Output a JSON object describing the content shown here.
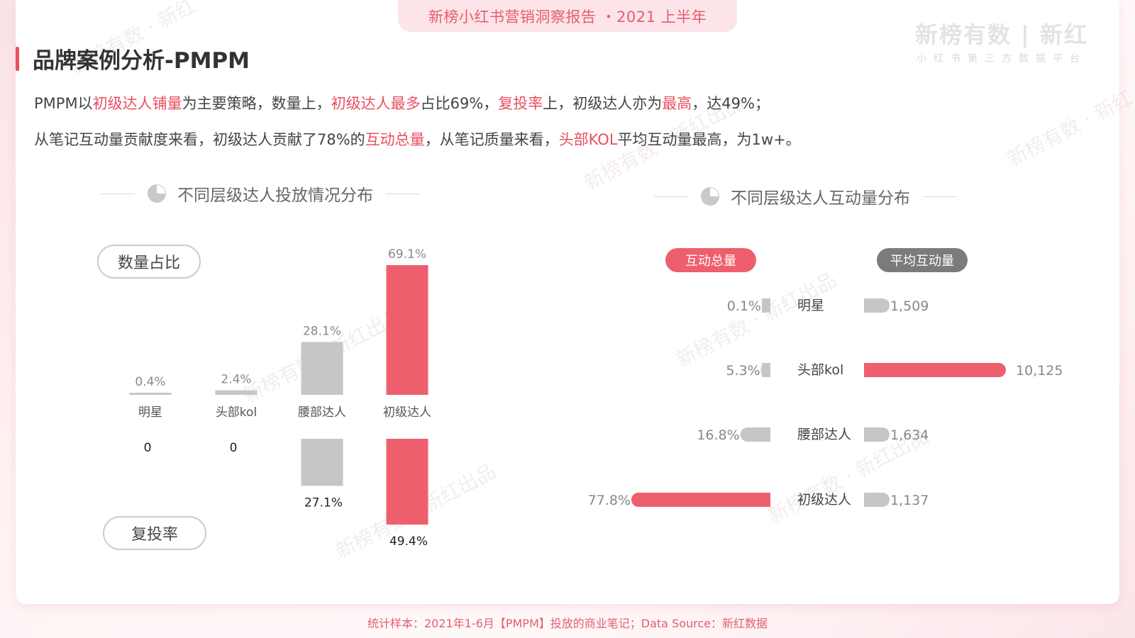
{
  "header": {
    "report_title": "新榜小红书营销洞察报告 ・2021 上半年",
    "brand_main": "新榜有数 | 新红",
    "brand_sub": "小红书第三方数据平台"
  },
  "page": {
    "title": "品牌案例分析-PMPM"
  },
  "description": {
    "line1": [
      {
        "text": "PMPM以",
        "hl": false
      },
      {
        "text": "初级达人铺量",
        "hl": true
      },
      {
        "text": "为主要策略，数量上，",
        "hl": false
      },
      {
        "text": "初级达人最多",
        "hl": true
      },
      {
        "text": "占比69%，",
        "hl": false
      },
      {
        "text": "复投率",
        "hl": true
      },
      {
        "text": "上，初级达人亦为",
        "hl": false
      },
      {
        "text": "最高",
        "hl": true
      },
      {
        "text": "，达49%；",
        "hl": false
      }
    ],
    "line2": [
      {
        "text": "从笔记互动量贡献度来看，初级达人贡献了78%的",
        "hl": false
      },
      {
        "text": "互动总量",
        "hl": true
      },
      {
        "text": "，从笔记质量来看，",
        "hl": false
      },
      {
        "text": "头部KOL",
        "hl": true
      },
      {
        "text": "平均互动量最高，为1w+。",
        "hl": false
      }
    ]
  },
  "left_section": {
    "title": "不同层级达人投放情况分布",
    "pill_quantity": "数量占比",
    "pill_repeat": "复投率"
  },
  "right_section": {
    "title": "不同层级达人互动量分布",
    "pill_total": "互动总量",
    "pill_avg": "平均互动量"
  },
  "colors": {
    "accent": "#ee5f6d",
    "gray": "#c6c6c6",
    "title_red": "#e8505f"
  },
  "chart_data": [
    {
      "type": "bar",
      "name": "数量占比",
      "categories": [
        "明星",
        "头部kol",
        "腰部达人",
        "初级达人"
      ],
      "values": [
        0.4,
        2.4,
        28.1,
        69.1
      ],
      "labels": [
        "0.4%",
        "2.4%",
        "28.1%",
        "69.1%"
      ],
      "highlight": [
        false,
        false,
        false,
        true
      ],
      "ylim": [
        0,
        69.1
      ]
    },
    {
      "type": "bar",
      "name": "复投率",
      "categories": [
        "明星",
        "头部kol",
        "腰部达人",
        "初级达人"
      ],
      "values": [
        0,
        0,
        27.1,
        49.4
      ],
      "labels": [
        "0",
        "0",
        "27.1%",
        "49.4%"
      ],
      "highlight": [
        false,
        false,
        false,
        true
      ],
      "ylim": [
        0,
        49.4
      ]
    },
    {
      "type": "bar",
      "name": "互动总量",
      "orientation": "horizontal",
      "categories": [
        "明星",
        "头部kol",
        "腰部达人",
        "初级达人"
      ],
      "values": [
        0.1,
        5.3,
        16.8,
        77.8
      ],
      "labels": [
        "0.1%",
        "5.3%",
        "16.8%",
        "77.8%"
      ],
      "highlight": [
        false,
        false,
        false,
        true
      ],
      "xlim": [
        0,
        77.8
      ]
    },
    {
      "type": "bar",
      "name": "平均互动量",
      "orientation": "horizontal",
      "categories": [
        "明星",
        "头部kol",
        "腰部达人",
        "初级达人"
      ],
      "values": [
        1509,
        10125,
        1634,
        1137
      ],
      "labels": [
        "1,509",
        "10,125",
        "1,634",
        "1,137"
      ],
      "highlight": [
        false,
        true,
        false,
        false
      ],
      "xlim": [
        0,
        10125
      ]
    }
  ],
  "footer": {
    "text": "统计样本：2021年1-6月【PMPM】投放的商业笔记；Data Source：新红数据"
  }
}
